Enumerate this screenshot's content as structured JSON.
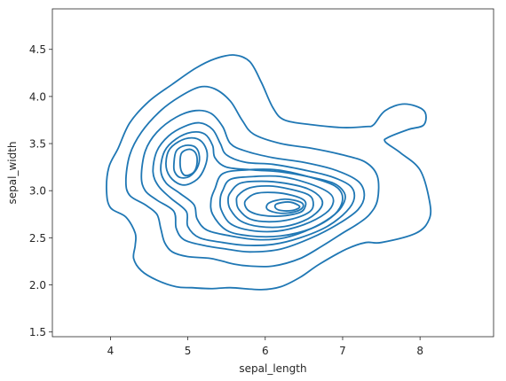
{
  "chart_data": {
    "type": "kde_contour",
    "xlabel": "sepal_length",
    "ylabel": "sepal_width",
    "xlim": [
      3.25,
      8.95
    ],
    "ylim": [
      1.45,
      4.93
    ],
    "xticks": [
      4,
      5,
      6,
      7,
      8
    ],
    "yticks": [
      1.5,
      2.0,
      2.5,
      3.0,
      3.5,
      4.0,
      4.5
    ],
    "xtick_labels": [
      "4",
      "5",
      "6",
      "7",
      "8"
    ],
    "ytick_labels": [
      "1.5",
      "2.0",
      "2.5",
      "3.0",
      "3.5",
      "4.0",
      "4.5"
    ],
    "line_color": "#1f77b4",
    "levels": [
      {
        "name": "outer",
        "points": [
          [
            3.95,
            3.0
          ],
          [
            3.98,
            3.25
          ],
          [
            4.1,
            3.45
          ],
          [
            4.25,
            3.72
          ],
          [
            4.5,
            3.95
          ],
          [
            4.8,
            4.13
          ],
          [
            5.1,
            4.3
          ],
          [
            5.35,
            4.4
          ],
          [
            5.6,
            4.44
          ],
          [
            5.8,
            4.37
          ],
          [
            5.95,
            4.15
          ],
          [
            6.1,
            3.88
          ],
          [
            6.25,
            3.75
          ],
          [
            6.6,
            3.7
          ],
          [
            7.0,
            3.67
          ],
          [
            7.3,
            3.68
          ],
          [
            7.4,
            3.7
          ],
          [
            7.55,
            3.85
          ],
          [
            7.8,
            3.92
          ],
          [
            8.05,
            3.85
          ],
          [
            8.05,
            3.7
          ],
          [
            7.85,
            3.65
          ],
          [
            7.6,
            3.57
          ],
          [
            7.55,
            3.52
          ],
          [
            7.75,
            3.4
          ],
          [
            8.0,
            3.22
          ],
          [
            8.12,
            2.9
          ],
          [
            8.12,
            2.7
          ],
          [
            7.95,
            2.55
          ],
          [
            7.5,
            2.45
          ],
          [
            7.3,
            2.45
          ],
          [
            7.05,
            2.38
          ],
          [
            6.7,
            2.22
          ],
          [
            6.45,
            2.08
          ],
          [
            6.2,
            1.98
          ],
          [
            5.95,
            1.95
          ],
          [
            5.55,
            1.97
          ],
          [
            5.3,
            1.96
          ],
          [
            5.05,
            1.97
          ],
          [
            4.85,
            1.98
          ],
          [
            4.6,
            2.05
          ],
          [
            4.4,
            2.15
          ],
          [
            4.3,
            2.28
          ],
          [
            4.32,
            2.42
          ],
          [
            4.32,
            2.55
          ],
          [
            4.2,
            2.72
          ],
          [
            4.0,
            2.82
          ],
          [
            3.95,
            3.0
          ]
        ]
      },
      {
        "name": "level-2",
        "points": [
          [
            4.2,
            3.1
          ],
          [
            4.25,
            3.38
          ],
          [
            4.4,
            3.62
          ],
          [
            4.65,
            3.85
          ],
          [
            4.9,
            4.0
          ],
          [
            5.15,
            4.1
          ],
          [
            5.35,
            4.08
          ],
          [
            5.55,
            3.95
          ],
          [
            5.7,
            3.75
          ],
          [
            5.85,
            3.6
          ],
          [
            6.2,
            3.5
          ],
          [
            6.6,
            3.45
          ],
          [
            7.0,
            3.38
          ],
          [
            7.3,
            3.3
          ],
          [
            7.45,
            3.15
          ],
          [
            7.45,
            2.9
          ],
          [
            7.35,
            2.75
          ],
          [
            7.2,
            2.65
          ],
          [
            7.0,
            2.55
          ],
          [
            6.75,
            2.42
          ],
          [
            6.45,
            2.28
          ],
          [
            6.1,
            2.2
          ],
          [
            5.8,
            2.2
          ],
          [
            5.6,
            2.22
          ],
          [
            5.3,
            2.28
          ],
          [
            5.0,
            2.3
          ],
          [
            4.8,
            2.35
          ],
          [
            4.7,
            2.45
          ],
          [
            4.65,
            2.6
          ],
          [
            4.6,
            2.75
          ],
          [
            4.45,
            2.85
          ],
          [
            4.25,
            2.95
          ],
          [
            4.2,
            3.1
          ]
        ]
      },
      {
        "name": "level-3",
        "points": [
          [
            4.4,
            3.15
          ],
          [
            4.45,
            3.42
          ],
          [
            4.6,
            3.62
          ],
          [
            4.85,
            3.78
          ],
          [
            5.1,
            3.85
          ],
          [
            5.3,
            3.82
          ],
          [
            5.45,
            3.68
          ],
          [
            5.55,
            3.5
          ],
          [
            5.75,
            3.42
          ],
          [
            6.1,
            3.35
          ],
          [
            6.5,
            3.3
          ],
          [
            6.9,
            3.22
          ],
          [
            7.2,
            3.1
          ],
          [
            7.28,
            2.95
          ],
          [
            7.2,
            2.8
          ],
          [
            6.95,
            2.65
          ],
          [
            6.6,
            2.5
          ],
          [
            6.2,
            2.38
          ],
          [
            5.8,
            2.35
          ],
          [
            5.5,
            2.38
          ],
          [
            5.2,
            2.42
          ],
          [
            4.95,
            2.48
          ],
          [
            4.85,
            2.6
          ],
          [
            4.82,
            2.78
          ],
          [
            4.6,
            2.9
          ],
          [
            4.45,
            3.0
          ],
          [
            4.4,
            3.15
          ]
        ]
      },
      {
        "name": "level-4",
        "points": [
          [
            4.55,
            3.2
          ],
          [
            4.6,
            3.42
          ],
          [
            4.75,
            3.58
          ],
          [
            4.95,
            3.68
          ],
          [
            5.15,
            3.72
          ],
          [
            5.32,
            3.65
          ],
          [
            5.42,
            3.5
          ],
          [
            5.5,
            3.38
          ],
          [
            5.75,
            3.3
          ],
          [
            6.1,
            3.28
          ],
          [
            6.5,
            3.22
          ],
          [
            6.85,
            3.15
          ],
          [
            7.1,
            3.05
          ],
          [
            7.15,
            2.92
          ],
          [
            7.05,
            2.78
          ],
          [
            6.8,
            2.62
          ],
          [
            6.45,
            2.5
          ],
          [
            6.1,
            2.43
          ],
          [
            5.75,
            2.42
          ],
          [
            5.45,
            2.45
          ],
          [
            5.15,
            2.5
          ],
          [
            5.0,
            2.62
          ],
          [
            4.98,
            2.78
          ],
          [
            4.78,
            2.92
          ],
          [
            4.62,
            3.05
          ],
          [
            4.55,
            3.2
          ]
        ]
      },
      {
        "name": "level-5",
        "points": [
          [
            4.65,
            3.22
          ],
          [
            4.7,
            3.42
          ],
          [
            4.85,
            3.55
          ],
          [
            5.05,
            3.62
          ],
          [
            5.22,
            3.6
          ],
          [
            5.32,
            3.48
          ],
          [
            5.35,
            3.35
          ],
          [
            5.5,
            3.25
          ],
          [
            5.85,
            3.22
          ],
          [
            6.2,
            3.2
          ],
          [
            6.55,
            3.15
          ],
          [
            6.88,
            3.08
          ],
          [
            7.02,
            2.98
          ],
          [
            7.02,
            2.88
          ],
          [
            6.9,
            2.75
          ],
          [
            6.6,
            2.6
          ],
          [
            6.25,
            2.5
          ],
          [
            5.9,
            2.48
          ],
          [
            5.55,
            2.52
          ],
          [
            5.25,
            2.58
          ],
          [
            5.12,
            2.7
          ],
          [
            5.08,
            2.85
          ],
          [
            4.9,
            2.97
          ],
          [
            4.72,
            3.08
          ],
          [
            4.65,
            3.22
          ]
        ]
      },
      {
        "name": "level-6",
        "points": [
          [
            4.72,
            3.25
          ],
          [
            4.75,
            3.42
          ],
          [
            4.88,
            3.52
          ],
          [
            5.05,
            3.56
          ],
          [
            5.18,
            3.52
          ],
          [
            5.25,
            3.4
          ],
          [
            5.22,
            3.25
          ],
          [
            5.12,
            3.12
          ],
          [
            4.95,
            3.06
          ],
          [
            4.8,
            3.12
          ],
          [
            4.72,
            3.25
          ]
        ]
      },
      {
        "name": "level-7",
        "points": [
          [
            4.82,
            3.28
          ],
          [
            4.85,
            3.42
          ],
          [
            4.97,
            3.48
          ],
          [
            5.1,
            3.46
          ],
          [
            5.15,
            3.36
          ],
          [
            5.12,
            3.24
          ],
          [
            5.02,
            3.15
          ],
          [
            4.9,
            3.14
          ],
          [
            4.83,
            3.2
          ],
          [
            4.82,
            3.28
          ]
        ]
      },
      {
        "name": "level-8",
        "points": [
          [
            4.9,
            3.3
          ],
          [
            4.92,
            3.4
          ],
          [
            5.02,
            3.44
          ],
          [
            5.1,
            3.4
          ],
          [
            5.12,
            3.3
          ],
          [
            5.08,
            3.2
          ],
          [
            4.98,
            3.16
          ],
          [
            4.92,
            3.2
          ],
          [
            4.9,
            3.3
          ]
        ]
      },
      {
        "name": "level-6b",
        "points": [
          [
            5.35,
            3.02
          ],
          [
            5.45,
            3.18
          ],
          [
            5.75,
            3.22
          ],
          [
            6.15,
            3.22
          ],
          [
            6.55,
            3.15
          ],
          [
            6.9,
            3.05
          ],
          [
            7.0,
            2.92
          ],
          [
            6.9,
            2.75
          ],
          [
            6.6,
            2.6
          ],
          [
            6.2,
            2.52
          ],
          [
            5.8,
            2.52
          ],
          [
            5.5,
            2.58
          ],
          [
            5.32,
            2.75
          ],
          [
            5.3,
            2.9
          ],
          [
            5.35,
            3.02
          ]
        ]
      },
      {
        "name": "level-7b",
        "points": [
          [
            5.45,
            3.0
          ],
          [
            5.55,
            3.12
          ],
          [
            5.85,
            3.15
          ],
          [
            6.2,
            3.15
          ],
          [
            6.55,
            3.08
          ],
          [
            6.82,
            2.98
          ],
          [
            6.88,
            2.88
          ],
          [
            6.78,
            2.76
          ],
          [
            6.5,
            2.64
          ],
          [
            6.15,
            2.57
          ],
          [
            5.8,
            2.58
          ],
          [
            5.55,
            2.65
          ],
          [
            5.43,
            2.8
          ],
          [
            5.42,
            2.92
          ],
          [
            5.45,
            3.0
          ]
        ]
      },
      {
        "name": "level-8b",
        "points": [
          [
            5.55,
            2.98
          ],
          [
            5.68,
            3.08
          ],
          [
            5.95,
            3.1
          ],
          [
            6.25,
            3.08
          ],
          [
            6.55,
            3.02
          ],
          [
            6.72,
            2.92
          ],
          [
            6.72,
            2.82
          ],
          [
            6.55,
            2.7
          ],
          [
            6.25,
            2.62
          ],
          [
            5.92,
            2.62
          ],
          [
            5.68,
            2.68
          ],
          [
            5.55,
            2.8
          ],
          [
            5.52,
            2.9
          ],
          [
            5.55,
            2.98
          ]
        ]
      },
      {
        "name": "level-9b",
        "points": [
          [
            5.65,
            2.95
          ],
          [
            5.8,
            3.03
          ],
          [
            6.05,
            3.05
          ],
          [
            6.3,
            3.02
          ],
          [
            6.55,
            2.96
          ],
          [
            6.62,
            2.88
          ],
          [
            6.58,
            2.78
          ],
          [
            6.35,
            2.7
          ],
          [
            6.05,
            2.67
          ],
          [
            5.8,
            2.7
          ],
          [
            5.66,
            2.8
          ],
          [
            5.63,
            2.88
          ],
          [
            5.65,
            2.95
          ]
        ]
      },
      {
        "name": "level-10b",
        "points": [
          [
            5.75,
            2.9
          ],
          [
            5.88,
            2.97
          ],
          [
            6.12,
            2.98
          ],
          [
            6.35,
            2.95
          ],
          [
            6.5,
            2.9
          ],
          [
            6.52,
            2.84
          ],
          [
            6.45,
            2.77
          ],
          [
            6.2,
            2.73
          ],
          [
            5.95,
            2.74
          ],
          [
            5.8,
            2.78
          ],
          [
            5.74,
            2.84
          ],
          [
            5.75,
            2.9
          ]
        ]
      },
      {
        "name": "level-11b",
        "points": [
          [
            6.05,
            2.87
          ],
          [
            6.25,
            2.91
          ],
          [
            6.45,
            2.88
          ],
          [
            6.49,
            2.83
          ],
          [
            6.4,
            2.78
          ],
          [
            6.2,
            2.76
          ],
          [
            6.03,
            2.8
          ],
          [
            6.05,
            2.87
          ]
        ]
      },
      {
        "name": "level-12b",
        "points": [
          [
            6.15,
            2.86
          ],
          [
            6.3,
            2.88
          ],
          [
            6.42,
            2.85
          ],
          [
            6.44,
            2.82
          ],
          [
            6.35,
            2.79
          ],
          [
            6.2,
            2.79
          ],
          [
            6.13,
            2.82
          ],
          [
            6.15,
            2.86
          ]
        ]
      }
    ]
  }
}
